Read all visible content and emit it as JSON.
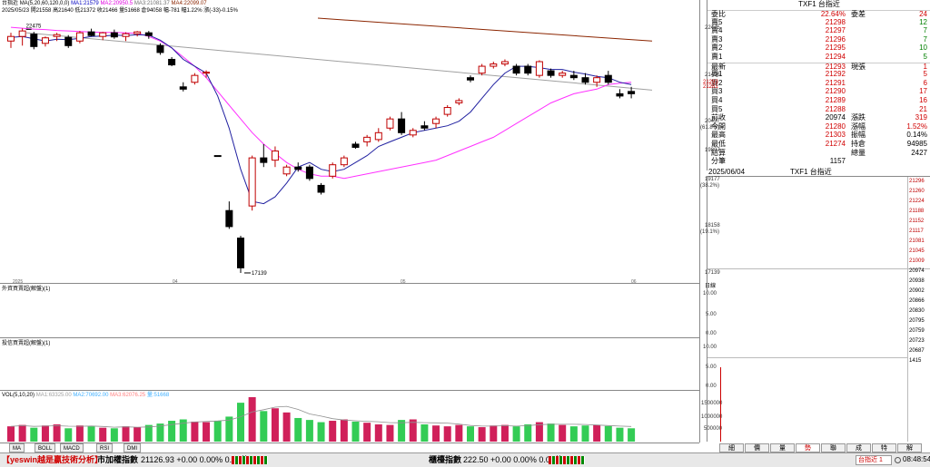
{
  "header": {
    "symbol": "台指近",
    "ma_label": "MA(5,20,60,120,0,0)",
    "ma1": "MA1:21579",
    "ma2": "MA2:20950.5",
    "ma3": "MA3:21081.37",
    "ma4": "MA4:22099.07",
    "date": "2025/05/23",
    "open": "開21558",
    "high": "高21640",
    "low": "低21372",
    "close": "收21466",
    "volume": "量51668",
    "oi": "倉94058",
    "change": "幅-781",
    "range": "幅1.22%",
    "diff": "漲(-33)-0.15%"
  },
  "main_axis": {
    "labels": [
      {
        "text": "22475",
        "v": 22475
      },
      {
        "text": "21456",
        "v": 21456
      },
      {
        "text": "20437",
        "v": 20437
      },
      {
        "text": "19807",
        "v": 19807
      },
      {
        "text": "19177",
        "v": 19177
      },
      {
        "text": "18158",
        "v": 18158
      },
      {
        "text": "17139",
        "v": 17139
      }
    ],
    "pct_labels": [
      {
        "text": "(61.8%)",
        "v": 20437
      },
      {
        "text": "(38.2%)",
        "v": 19177
      },
      {
        "text": "(19.1%)",
        "v": 18158
      }
    ],
    "price_tags": [
      {
        "text": "21293",
        "v": 21293
      },
      {
        "text": "21281",
        "v": 21281
      }
    ],
    "date_labels": [
      "2025",
      "04",
      "05",
      "06"
    ],
    "hi_label": "22475",
    "lo_label": "17139",
    "corner": "日線"
  },
  "chart_data": {
    "type": "candlestick",
    "ylim": [
      17000,
      22700
    ],
    "candles": [
      {
        "o": 22200,
        "h": 22380,
        "l": 22050,
        "c": 22300,
        "bull": true
      },
      {
        "o": 22300,
        "h": 22475,
        "l": 22100,
        "c": 22420,
        "bull": true
      },
      {
        "o": 22350,
        "h": 22400,
        "l": 22020,
        "c": 22080,
        "bull": false
      },
      {
        "o": 22150,
        "h": 22300,
        "l": 22080,
        "c": 22270,
        "bull": true
      },
      {
        "o": 22300,
        "h": 22380,
        "l": 22200,
        "c": 22340,
        "bull": true
      },
      {
        "o": 22280,
        "h": 22330,
        "l": 22050,
        "c": 22100,
        "bull": false
      },
      {
        "o": 22200,
        "h": 22420,
        "l": 22150,
        "c": 22380,
        "bull": true
      },
      {
        "o": 22400,
        "h": 22470,
        "l": 22300,
        "c": 22320,
        "bull": false
      },
      {
        "o": 22300,
        "h": 22400,
        "l": 22220,
        "c": 22380,
        "bull": true
      },
      {
        "o": 22380,
        "h": 22450,
        "l": 22250,
        "c": 22290,
        "bull": false
      },
      {
        "o": 22300,
        "h": 22390,
        "l": 22200,
        "c": 22360,
        "bull": true
      },
      {
        "o": 22360,
        "h": 22420,
        "l": 22300,
        "c": 22400,
        "bull": true
      },
      {
        "o": 22380,
        "h": 22420,
        "l": 22250,
        "c": 22320,
        "bull": false
      },
      {
        "o": 22100,
        "h": 22150,
        "l": 21900,
        "c": 21950,
        "bull": false
      },
      {
        "o": 21800,
        "h": 21850,
        "l": 21650,
        "c": 21680,
        "bull": false
      },
      {
        "o": 21200,
        "h": 21300,
        "l": 21100,
        "c": 21150,
        "bull": false
      },
      {
        "o": 21300,
        "h": 21500,
        "l": 21250,
        "c": 21450,
        "bull": true
      },
      {
        "o": 21500,
        "h": 21560,
        "l": 21400,
        "c": 21520,
        "bull": true
      },
      {
        "o": 19700,
        "h": 19700,
        "l": 19700,
        "c": 19700,
        "bull": false
      },
      {
        "o": 18500,
        "h": 18700,
        "l": 18100,
        "c": 18150,
        "bull": false
      },
      {
        "o": 17900,
        "h": 17950,
        "l": 17139,
        "c": 17250,
        "bull": false
      },
      {
        "o": 18600,
        "h": 19700,
        "l": 18500,
        "c": 19650,
        "bull": true
      },
      {
        "o": 19650,
        "h": 19950,
        "l": 19450,
        "c": 19550,
        "bull": false
      },
      {
        "o": 19600,
        "h": 19900,
        "l": 19450,
        "c": 19800,
        "bull": true
      },
      {
        "o": 19300,
        "h": 19500,
        "l": 19250,
        "c": 19450,
        "bull": true
      },
      {
        "o": 19450,
        "h": 19550,
        "l": 19350,
        "c": 19400,
        "bull": false
      },
      {
        "o": 19450,
        "h": 19500,
        "l": 19150,
        "c": 19200,
        "bull": false
      },
      {
        "o": 19050,
        "h": 19100,
        "l": 18850,
        "c": 18900,
        "bull": false
      },
      {
        "o": 19250,
        "h": 19550,
        "l": 19200,
        "c": 19500,
        "bull": true
      },
      {
        "o": 19500,
        "h": 19700,
        "l": 19450,
        "c": 19650,
        "bull": true
      },
      {
        "o": 19950,
        "h": 20000,
        "l": 19850,
        "c": 19880,
        "bull": false
      },
      {
        "o": 20000,
        "h": 20150,
        "l": 19900,
        "c": 20100,
        "bull": true
      },
      {
        "o": 20050,
        "h": 20300,
        "l": 20000,
        "c": 20200,
        "bull": true
      },
      {
        "o": 20300,
        "h": 20550,
        "l": 20250,
        "c": 20500,
        "bull": true
      },
      {
        "o": 20500,
        "h": 20650,
        "l": 20150,
        "c": 20200,
        "bull": false
      },
      {
        "o": 20150,
        "h": 20300,
        "l": 20100,
        "c": 20250,
        "bull": true
      },
      {
        "o": 20350,
        "h": 20450,
        "l": 20250,
        "c": 20300,
        "bull": false
      },
      {
        "o": 20400,
        "h": 20550,
        "l": 20300,
        "c": 20500,
        "bull": true
      },
      {
        "o": 20600,
        "h": 20800,
        "l": 20550,
        "c": 20750,
        "bull": true
      },
      {
        "o": 20850,
        "h": 20950,
        "l": 20800,
        "c": 20900,
        "bull": true
      },
      {
        "o": 21350,
        "h": 21450,
        "l": 21300,
        "c": 21400,
        "bull": false
      },
      {
        "o": 21500,
        "h": 21700,
        "l": 21450,
        "c": 21650,
        "bull": true
      },
      {
        "o": 21650,
        "h": 21750,
        "l": 21600,
        "c": 21700,
        "bull": true
      },
      {
        "o": 21700,
        "h": 21800,
        "l": 21650,
        "c": 21750,
        "bull": true
      },
      {
        "o": 21650,
        "h": 21700,
        "l": 21450,
        "c": 21500,
        "bull": false
      },
      {
        "o": 21650,
        "h": 21700,
        "l": 21450,
        "c": 21500,
        "bull": false
      },
      {
        "o": 21450,
        "h": 21780,
        "l": 21400,
        "c": 21750,
        "bull": true
      },
      {
        "o": 21550,
        "h": 21600,
        "l": 21400,
        "c": 21450,
        "bull": false
      },
      {
        "o": 21450,
        "h": 21550,
        "l": 21400,
        "c": 21500,
        "bull": true
      },
      {
        "o": 21450,
        "h": 21550,
        "l": 21350,
        "c": 21400,
        "bull": false
      },
      {
        "o": 21400,
        "h": 21500,
        "l": 21250,
        "c": 21300,
        "bull": false
      },
      {
        "o": 21300,
        "h": 21450,
        "l": 21200,
        "c": 21400,
        "bull": true
      },
      {
        "o": 21450,
        "h": 21550,
        "l": 21250,
        "c": 21300,
        "bull": false
      },
      {
        "o": 21050,
        "h": 21150,
        "l": 20950,
        "c": 21000,
        "bull": false
      },
      {
        "o": 21050,
        "h": 21200,
        "l": 20950,
        "c": 21100,
        "bull": false
      }
    ],
    "ma5": [
      22280,
      22300,
      22250,
      22200,
      22240,
      22230,
      22260,
      22300,
      22310,
      22330,
      22320,
      22340,
      22330,
      22220,
      22050,
      21800,
      21650,
      21500,
      21000,
      20300,
      19400,
      18700,
      18650,
      18800,
      19100,
      19450,
      19550,
      19400,
      19350,
      19400,
      19550,
      19700,
      19900,
      20000,
      20100,
      20200,
      20250,
      20300,
      20350,
      20450,
      20650,
      20950,
      21250,
      21500,
      21650,
      21650,
      21620,
      21580,
      21580,
      21520,
      21480,
      21430,
      21400,
      21300,
      21250
    ],
    "ma20": [
      22500,
      22480,
      22460,
      22450,
      22430,
      22420,
      22410,
      22400,
      22390,
      22390,
      22380,
      22370,
      22300,
      22200,
      22050,
      21850,
      21650,
      21400,
      21100,
      20800,
      20500,
      20200,
      19950,
      19750,
      19550,
      19400,
      19300,
      19250,
      19250,
      19200,
      19250,
      19300,
      19350,
      19400,
      19450,
      19500,
      19550,
      19600,
      19700,
      19800,
      19900,
      20000,
      20100,
      20250,
      20400,
      20550,
      20700,
      20850,
      20950,
      21050,
      21100,
      21150,
      21250,
      21280,
      21300
    ],
    "ma60_line": [
      [
        29,
        22380
      ],
      [
        718,
        21130
      ]
    ],
    "ma120_line": [
      [
        350,
        22700
      ],
      [
        718,
        22200
      ]
    ]
  },
  "sub1": {
    "title": "外資買賣超(解盤)(1)",
    "ticks": [
      "10.00",
      "5.00",
      "0.00"
    ]
  },
  "sub2": {
    "title": "投信買賣超(解盤)(1)",
    "ticks": [
      "10.00",
      "5.00",
      "0.00"
    ]
  },
  "vol": {
    "title": "VOL(5,10,20)",
    "ma1": "MA1:63325.00",
    "ma2": "MA2:70692.00",
    "ma3": "MA3:62076.25",
    "cur": "量:51668",
    "ticks": [
      "1500000",
      "1000000",
      "500000"
    ],
    "ymax": 1600000,
    "values": [
      55,
      60,
      50,
      58,
      62,
      48,
      58,
      55,
      50,
      48,
      55,
      52,
      60,
      65,
      75,
      80,
      72,
      70,
      75,
      90,
      140,
      160,
      110,
      120,
      105,
      85,
      78,
      70,
      75,
      80,
      72,
      68,
      62,
      60,
      78,
      80,
      62,
      58,
      55,
      60,
      55,
      52,
      58,
      60,
      55,
      62,
      70,
      65,
      60,
      55,
      58,
      60,
      56,
      50,
      48
    ],
    "bull": [
      true,
      true,
      false,
      true,
      true,
      false,
      true,
      false,
      true,
      false,
      true,
      true,
      false,
      false,
      false,
      false,
      true,
      true,
      false,
      false,
      false,
      true,
      false,
      true,
      true,
      false,
      false,
      false,
      true,
      true,
      false,
      true,
      true,
      true,
      false,
      true,
      false,
      true,
      true,
      true,
      false,
      true,
      true,
      true,
      false,
      false,
      true,
      false,
      true,
      false,
      false,
      true,
      false,
      false,
      false
    ]
  },
  "bottom_tabs": [
    "MA",
    "BOLL",
    "MACD",
    "RSI",
    "DMI"
  ],
  "quote": {
    "title": "TXF1 台指近",
    "rows": [
      {
        "l": "委比",
        "v": "22.64%",
        "l2": "委差",
        "v2": "24",
        "cls": "red",
        "cls2": "red",
        "head": true
      },
      {
        "l": "賣5",
        "v": "21298",
        "v2": "12",
        "cls": "red",
        "cls2": "green"
      },
      {
        "l": "賣4",
        "v": "21297",
        "v2": "7",
        "cls": "red",
        "cls2": "green"
      },
      {
        "l": "賣3",
        "v": "21296",
        "v2": "7",
        "cls": "red",
        "cls2": "green"
      },
      {
        "l": "賣2",
        "v": "21295",
        "v2": "10",
        "cls": "red",
        "cls2": "green"
      },
      {
        "l": "賣1",
        "v": "21294",
        "v2": "5",
        "cls": "red",
        "cls2": "green"
      },
      {
        "l": "最新",
        "v": "21293",
        "l2": "現張",
        "v2": "1",
        "cls": "red",
        "cls2": "red"
      },
      {
        "l": "買1",
        "v": "21292",
        "v2": "5",
        "cls": "red",
        "cls2": "red"
      },
      {
        "l": "買2",
        "v": "21291",
        "v2": "6",
        "cls": "red",
        "cls2": "red"
      },
      {
        "l": "買3",
        "v": "21290",
        "v2": "17",
        "cls": "red",
        "cls2": "red"
      },
      {
        "l": "買4",
        "v": "21289",
        "v2": "16",
        "cls": "red",
        "cls2": "red"
      },
      {
        "l": "買5",
        "v": "21288",
        "v2": "21",
        "cls": "red",
        "cls2": "red"
      },
      {
        "l": "前收",
        "v": "20974",
        "l2": "漲跌",
        "v2": "319",
        "cls": "blk",
        "cls2": "red"
      },
      {
        "l": "今開",
        "v": "21280",
        "l2": "漲幅",
        "v2": "1.52%",
        "cls": "red",
        "cls2": "red"
      },
      {
        "l": "最高",
        "v": "21303",
        "l2": "振幅",
        "v2": "0.14%",
        "cls": "red",
        "cls2": "blk"
      },
      {
        "l": "最低",
        "v": "21274",
        "l2": "持倉",
        "v2": "94985",
        "cls": "red",
        "cls2": "blk"
      },
      {
        "l": "結算",
        "v": "",
        "l2": "總量",
        "v2": "2427",
        "cls": "blk",
        "cls2": "blk"
      },
      {
        "l": "分筆",
        "v": "1157",
        "cls": "blk"
      }
    ]
  },
  "tick": {
    "date": "2025/06/04",
    "title": "TXF1 台指近",
    "ticks": [
      "21296",
      "21260",
      "21224",
      "21188",
      "21152",
      "21117",
      "21081",
      "21045",
      "21009",
      "20974",
      "20938",
      "20902",
      "20866",
      "20830",
      "20795",
      "20759",
      "20723",
      "20687"
    ],
    "vol_label": "1415"
  },
  "right_tabs": [
    "細",
    "價",
    "量",
    "勢",
    "聯",
    "成",
    "特",
    "解"
  ],
  "status": {
    "brand": "【yeswin越是贏技術分析】",
    "idx1_name": "市加權指數",
    "idx1_vals": "21126.93 +0.00 0.00% 0.00億",
    "idx2_name": "櫃檯指數",
    "idx2_vals": "222.50 +0.00 0.00% 0.00億",
    "symbol": "台指近 1",
    "time": "08:48:54"
  }
}
